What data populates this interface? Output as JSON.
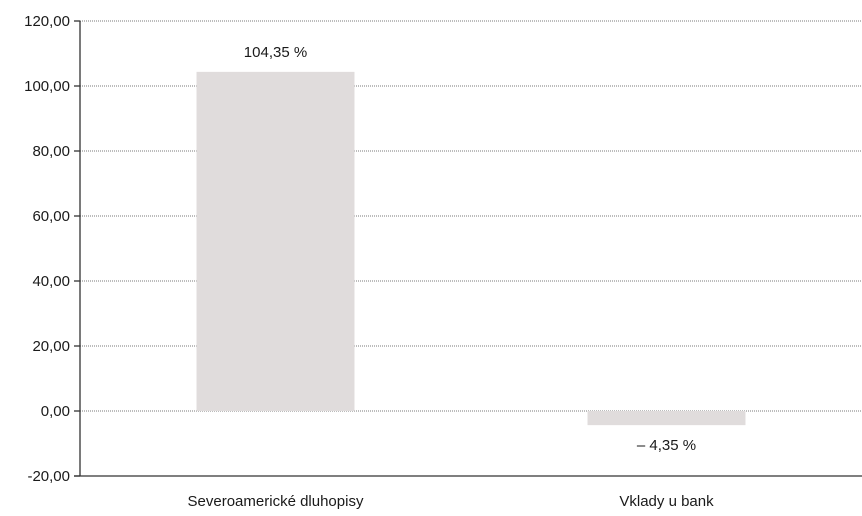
{
  "chart_data": {
    "type": "bar",
    "categories": [
      "Severoamerické dluhopisy",
      "Vklady u bank"
    ],
    "values": [
      104.35,
      -4.35
    ],
    "data_labels": [
      "104,35 %",
      "– 4,35 %"
    ],
    "yticks": [
      "120,00",
      "100,00",
      "80,00",
      "60,00",
      "40,00",
      "20,00",
      "0,00",
      "-20,00"
    ],
    "ytick_values": [
      120,
      100,
      80,
      60,
      40,
      20,
      0,
      -20
    ],
    "ylim": [
      -20,
      120
    ],
    "grid": true,
    "title": "",
    "xlabel": "",
    "ylabel": "",
    "colors": {
      "bar": "#e0dcdc",
      "axis": "#333333",
      "grid": "#7a7a7a",
      "text": "#1a1a1a"
    }
  }
}
